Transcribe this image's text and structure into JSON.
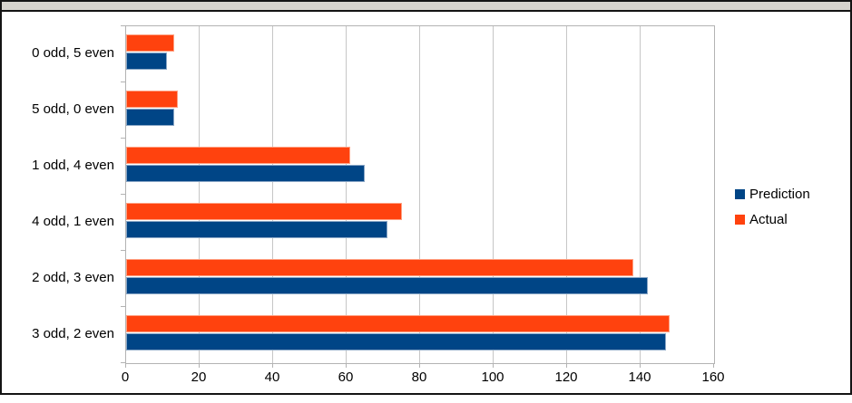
{
  "window": {
    "top_strip_color": "#d6d3cd",
    "frame_border_color": "#141414"
  },
  "chart_data": {
    "type": "bar",
    "orientation": "horizontal",
    "title": "",
    "xlabel": "",
    "ylabel": "",
    "categories": [
      "0 odd, 5 even",
      "5 odd, 0 even",
      "1 odd, 4 even",
      "4 odd, 1 even",
      "2 odd, 3 even",
      "3 odd, 2 even"
    ],
    "series": [
      {
        "name": "Prediction",
        "color": "#004586",
        "edge_color": "#8aa7c6",
        "values": [
          11,
          13,
          65,
          71,
          142,
          147
        ]
      },
      {
        "name": "Actual",
        "color": "#ff420e",
        "edge_color": "#ffa183",
        "values": [
          13,
          14,
          61,
          75,
          138,
          148
        ]
      }
    ],
    "bar_order_top_to_bottom": [
      "Actual",
      "Prediction"
    ],
    "xlim": [
      0,
      160
    ],
    "x_ticks": [
      0,
      20,
      40,
      60,
      80,
      100,
      120,
      140,
      160
    ],
    "grid": "vertical",
    "gridline_color": "#c6c6c6",
    "axis_color": "#b3b3b3",
    "legend_position": "right"
  }
}
